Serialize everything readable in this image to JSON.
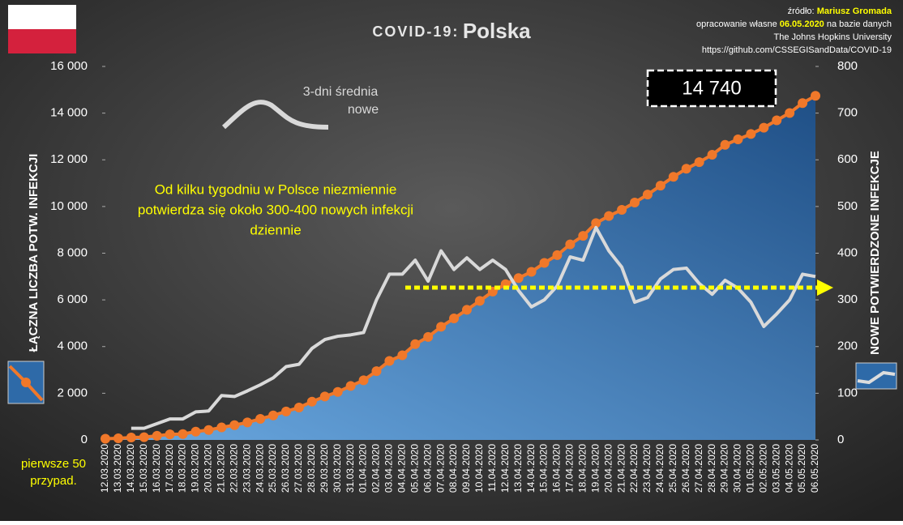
{
  "chart_data": {
    "type": "line",
    "title": {
      "prefix": "COVID-19:",
      "main": "Polska"
    },
    "source": [
      [
        "źródło:",
        "Mariusz Gromada"
      ],
      [
        "opracowanie własne",
        "06.05.2020",
        "na bazie danych"
      ],
      [
        "The Johns Hopkins University"
      ],
      [
        "https://github.com/CSSEGISandData/COVID-19"
      ]
    ],
    "annotation": [
      "Od kilku tygodniu w Polsce niezmiennie",
      "potwierdza się około 300-400 nowych infekcji",
      "dziennie"
    ],
    "legend_label": [
      "3-dni średnia",
      "nowe"
    ],
    "first_cases_note": [
      "pierwsze 50",
      "przypad."
    ],
    "callout": {
      "value": 14740,
      "label": "14 740"
    },
    "ylabel": "ŁĄCZNA LICZBA POTW. INFEKCJI",
    "y2label": "NOWE POTWIERDZONE INFEKCJE",
    "categories": [
      "12.03.2020",
      "13.03.2020",
      "14.03.2020",
      "15.03.2020",
      "16.03.2020",
      "17.03.2020",
      "18.03.2020",
      "19.03.2020",
      "20.03.2020",
      "21.03.2020",
      "22.03.2020",
      "23.03.2020",
      "24.03.2020",
      "25.03.2020",
      "26.03.2020",
      "27.03.2020",
      "28.03.2020",
      "29.03.2020",
      "30.03.2020",
      "31.03.2020",
      "01.04.2020",
      "02.04.2020",
      "03.04.2020",
      "04.04.2020",
      "05.04.2020",
      "06.04.2020",
      "07.04.2020",
      "08.04.2020",
      "09.04.2020",
      "10.04.2020",
      "11.04.2020",
      "12.04.2020",
      "13.04.2020",
      "14.04.2020",
      "15.04.2020",
      "16.04.2020",
      "17.04.2020",
      "18.04.2020",
      "19.04.2020",
      "20.04.2020",
      "21.04.2020",
      "22.04.2020",
      "23.04.2020",
      "24.04.2020",
      "25.04.2020",
      "26.04.2020",
      "27.04.2020",
      "28.04.2020",
      "29.04.2020",
      "30.04.2020",
      "01.05.2020",
      "02.05.2020",
      "03.05.2020",
      "04.05.2020",
      "05.05.2020",
      "06.05.2020"
    ],
    "series": [
      {
        "color": "#f0782a",
        "values": [
          51,
          68,
          103,
          119,
          177,
          238,
          251,
          355,
          425,
          536,
          634,
          749,
          901,
          1051,
          1221,
          1389,
          1638,
          1862,
          2055,
          2311,
          2554,
          2946,
          3383,
          3627,
          4102,
          4413,
          4848,
          5205,
          5575,
          5955,
          6356,
          6674,
          6934,
          7202,
          7582,
          7918,
          8379,
          8742,
          9287,
          9593,
          9856,
          10169,
          10511,
          10892,
          11273,
          11617,
          11902,
          12218,
          12640,
          12877,
          13105,
          13375,
          13693,
          14006,
          14431,
          14740
        ]
      },
      {
        "color": "#d9d9d9",
        "axis": "y2",
        "values": [
          null,
          null,
          25,
          25,
          35,
          45,
          45,
          60,
          62,
          95,
          93,
          105,
          118,
          133,
          157,
          162,
          196,
          215,
          222,
          225,
          230,
          300,
          355,
          355,
          385,
          340,
          405,
          365,
          390,
          365,
          385,
          365,
          320,
          285,
          300,
          330,
          392,
          385,
          455,
          405,
          370,
          295,
          305,
          345,
          365,
          368,
          335,
          312,
          342,
          325,
          295,
          243,
          270,
          300,
          355,
          350
        ]
      }
    ],
    "ylim": [
      0,
      16000
    ],
    "yticks": [
      0,
      {
        "value": 2000,
        "label": "2 000"
      },
      {
        "value": 4000,
        "label": "4 000"
      },
      {
        "value": 6000,
        "label": "6 000"
      },
      {
        "value": 8000,
        "label": "8 000"
      },
      {
        "value": 10000,
        "label": "10 000"
      },
      {
        "value": 12000,
        "label": "12 000"
      },
      {
        "value": 14000,
        "label": "14 000"
      },
      {
        "value": 16000,
        "label": "16 000"
      }
    ],
    "y2lim": [
      0,
      800
    ],
    "y2ticks": [
      0,
      100,
      200,
      300,
      400,
      500,
      600,
      700,
      800
    ]
  }
}
